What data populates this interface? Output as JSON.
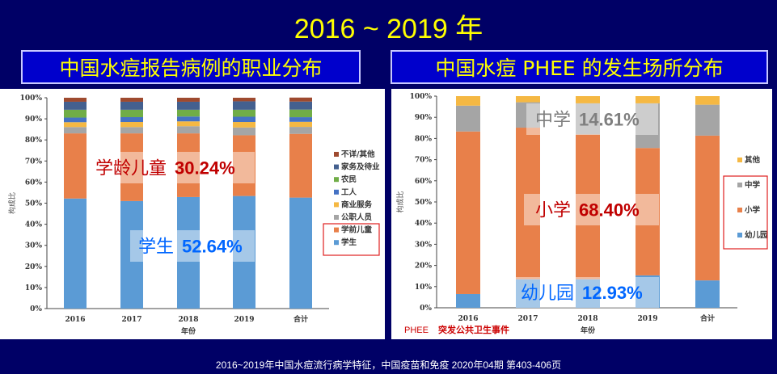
{
  "title": "2016 ~ 2019 年",
  "footer": "2016~2019年中国水痘流行病学特征，中国疫苗和免疫 2020年04期 第403-406页",
  "chart_data": [
    {
      "type": "bar",
      "stacked": true,
      "title": "中国水痘报告病例的职业分布",
      "xlabel": "年份",
      "ylabel": "构成比",
      "ylim": [
        0,
        100
      ],
      "yticks": [
        "0%",
        "10%",
        "20%",
        "30%",
        "40%",
        "50%",
        "60%",
        "70%",
        "80%",
        "90%",
        "100%"
      ],
      "categories": [
        "2016",
        "2017",
        "2018",
        "2019",
        "合计"
      ],
      "legend_position": "right",
      "series": [
        {
          "name": "学生",
          "color": "#5b9bd5",
          "values": [
            52.2,
            51.0,
            52.9,
            53.4,
            52.64
          ]
        },
        {
          "name": "学前儿童",
          "color": "#e8804a",
          "values": [
            30.9,
            32.1,
            30.2,
            28.8,
            30.24
          ]
        },
        {
          "name": "公职人员",
          "color": "#a5a5a5",
          "values": [
            3.0,
            3.0,
            3.4,
            3.7,
            3.3
          ]
        },
        {
          "name": "商业服务",
          "color": "#f5b843",
          "values": [
            2.3,
            2.4,
            2.3,
            2.6,
            2.4
          ]
        },
        {
          "name": "工人",
          "color": "#4472c4",
          "values": [
            2.2,
            2.3,
            2.3,
            2.5,
            2.2
          ]
        },
        {
          "name": "农民",
          "color": "#70ad47",
          "values": [
            3.7,
            3.5,
            3.2,
            3.3,
            3.6
          ]
        },
        {
          "name": "家务及待业",
          "color": "#44608f",
          "values": [
            3.8,
            3.8,
            3.8,
            4.0,
            3.8
          ]
        },
        {
          "name": "不详/其他",
          "color": "#9e4a2f",
          "values": [
            1.9,
            1.9,
            1.9,
            1.7,
            1.9
          ]
        }
      ],
      "annotations": [
        {
          "label": "学龄儿童",
          "value": "30.24%",
          "color": "#c00000"
        },
        {
          "label": "学生",
          "value": "52.64%",
          "color": "#0066ff"
        }
      ]
    },
    {
      "type": "bar",
      "stacked": true,
      "title": "中国水痘 PHEE 的发生场所分布",
      "xlabel": "年份",
      "ylabel": "构成比",
      "ylim": [
        0,
        100
      ],
      "yticks": [
        "0%",
        "10%",
        "20%",
        "30%",
        "40%",
        "50%",
        "60%",
        "70%",
        "80%",
        "90%",
        "100%"
      ],
      "categories": [
        "2016",
        "2017",
        "2018",
        "2019",
        "合计"
      ],
      "legend_position": "right",
      "series": [
        {
          "name": "幼儿园",
          "color": "#5b9bd5",
          "values": [
            6.5,
            13.5,
            13.5,
            15.3,
            12.93
          ]
        },
        {
          "name": "小学",
          "color": "#e8804a",
          "values": [
            76.8,
            71.6,
            68.4,
            60.2,
            68.4
          ]
        },
        {
          "name": "中学",
          "color": "#a5a5a5",
          "values": [
            12.2,
            12.0,
            14.7,
            21.1,
            14.61
          ]
        },
        {
          "name": "其他",
          "color": "#f5b843",
          "values": [
            4.5,
            2.9,
            3.4,
            3.4,
            4.06
          ]
        }
      ],
      "annotations": [
        {
          "label": "中学",
          "value": "14.61%",
          "color": "#7f7f7f"
        },
        {
          "label": "小学",
          "value": "68.40%",
          "color": "#c00000"
        },
        {
          "label": "幼儿园",
          "value": "12.93%",
          "color": "#0066ff"
        }
      ],
      "note_prefix": "PHEE",
      "note": "突发公共卫生事件"
    }
  ]
}
